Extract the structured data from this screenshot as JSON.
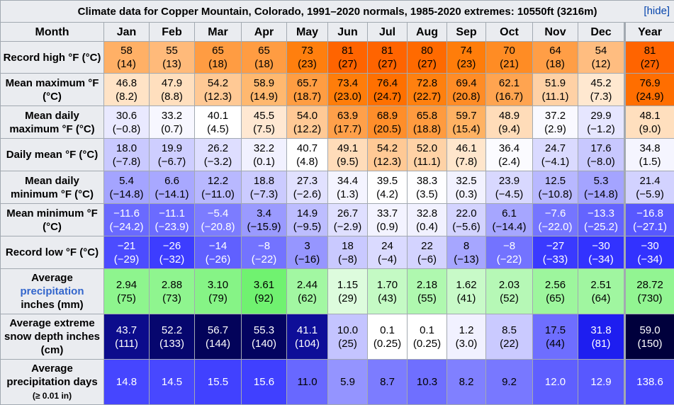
{
  "title": "Climate data for Copper Mountain, Colorado, 1991–2020 normals, 1985-2020 extremes: 10550ft (3216m)",
  "hide_label": "[hide]",
  "header": {
    "month": "Month",
    "months": [
      "Jan",
      "Feb",
      "Mar",
      "Apr",
      "May",
      "Jun",
      "Jul",
      "Aug",
      "Sep",
      "Oct",
      "Nov",
      "Dec"
    ],
    "year": "Year"
  },
  "rows": [
    {
      "label": "Record high °F (°C)",
      "cells": [
        [
          "58",
          "(14)"
        ],
        [
          "55",
          "(13)"
        ],
        [
          "65",
          "(18)"
        ],
        [
          "65",
          "(18)"
        ],
        [
          "73",
          "(23)"
        ],
        [
          "81",
          "(27)"
        ],
        [
          "81",
          "(27)"
        ],
        [
          "80",
          "(27)"
        ],
        [
          "74",
          "(23)"
        ],
        [
          "70",
          "(21)"
        ],
        [
          "64",
          "(18)"
        ],
        [
          "54",
          "(12)"
        ],
        [
          "81",
          "(27)"
        ]
      ],
      "colors": [
        "#ffb066",
        "#ffba7a",
        "#ff9c42",
        "#ff9c42",
        "#ff7f0e",
        "#ff6400",
        "#ff6400",
        "#ff6a00",
        "#ff7d0a",
        "#ff8c24",
        "#ff9e46",
        "#ffbd80",
        "#ff6400"
      ],
      "text": [
        "#000",
        "#000",
        "#000",
        "#000",
        "#000",
        "#000",
        "#000",
        "#000",
        "#000",
        "#000",
        "#000",
        "#000",
        "#000"
      ]
    },
    {
      "label": "Mean maximum °F (°C)",
      "cells": [
        [
          "46.8",
          "(8.2)"
        ],
        [
          "47.9",
          "(8.8)"
        ],
        [
          "54.2",
          "(12.3)"
        ],
        [
          "58.9",
          "(14.9)"
        ],
        [
          "65.7",
          "(18.7)"
        ],
        [
          "73.4",
          "(23.0)"
        ],
        [
          "76.4",
          "(24.7)"
        ],
        [
          "72.8",
          "(22.7)"
        ],
        [
          "69.4",
          "(20.8)"
        ],
        [
          "62.1",
          "(16.7)"
        ],
        [
          "51.9",
          "(11.1)"
        ],
        [
          "45.2",
          "(7.3)"
        ],
        [
          "76.9",
          "(24.9)"
        ]
      ],
      "colors": [
        "#ffe3c6",
        "#ffdfbe",
        "#ffc995",
        "#ffb86f",
        "#ff9d42",
        "#ff7d0a",
        "#ff7000",
        "#ff800f",
        "#ff8c26",
        "#ffa450",
        "#ffd1a5",
        "#ffe8d0",
        "#ff6e00"
      ],
      "text": [
        "#000",
        "#000",
        "#000",
        "#000",
        "#000",
        "#000",
        "#000",
        "#000",
        "#000",
        "#000",
        "#000",
        "#000",
        "#000"
      ]
    },
    {
      "label": "Mean daily maximum °F (°C)",
      "cells": [
        [
          "30.6",
          "(−0.8)"
        ],
        [
          "33.2",
          "(0.7)"
        ],
        [
          "40.1",
          "(4.5)"
        ],
        [
          "45.5",
          "(7.5)"
        ],
        [
          "54.0",
          "(12.2)"
        ],
        [
          "63.9",
          "(17.7)"
        ],
        [
          "68.9",
          "(20.5)"
        ],
        [
          "65.8",
          "(18.8)"
        ],
        [
          "59.7",
          "(15.4)"
        ],
        [
          "48.9",
          "(9.4)"
        ],
        [
          "37.2",
          "(2.9)"
        ],
        [
          "29.9",
          "(−1.2)"
        ],
        [
          "48.1",
          "(9.0)"
        ]
      ],
      "colors": [
        "#e9e9ff",
        "#f7f7ff",
        "#ffffff",
        "#ffe8d2",
        "#ffc995",
        "#ffa04a",
        "#ff8e2a",
        "#ff9b3f",
        "#ffb263",
        "#ffdcb9",
        "#f9f9ff",
        "#e6e6ff",
        "#ffdfbe"
      ],
      "text": [
        "#000",
        "#000",
        "#000",
        "#000",
        "#000",
        "#000",
        "#000",
        "#000",
        "#000",
        "#000",
        "#000",
        "#000",
        "#000"
      ]
    },
    {
      "label": "Daily mean °F (°C)",
      "cells": [
        [
          "18.0",
          "(−7.8)"
        ],
        [
          "19.9",
          "(−6.7)"
        ],
        [
          "26.2",
          "(−3.2)"
        ],
        [
          "32.2",
          "(0.1)"
        ],
        [
          "40.7",
          "(4.8)"
        ],
        [
          "49.1",
          "(9.5)"
        ],
        [
          "54.2",
          "(12.3)"
        ],
        [
          "52.0",
          "(11.1)"
        ],
        [
          "46.1",
          "(7.8)"
        ],
        [
          "36.4",
          "(2.4)"
        ],
        [
          "24.7",
          "(−4.1)"
        ],
        [
          "17.6",
          "(−8.0)"
        ],
        [
          "34.8",
          "(1.5)"
        ]
      ],
      "colors": [
        "#c9c9ff",
        "#ceceff",
        "#dedeff",
        "#f1f1ff",
        "#ffffff",
        "#ffdcb9",
        "#ffc995",
        "#ffd2a6",
        "#ffe6cc",
        "#fbfbff",
        "#dadaff",
        "#c8c8ff",
        "#f5f5ff"
      ],
      "text": [
        "#000",
        "#000",
        "#000",
        "#000",
        "#000",
        "#000",
        "#000",
        "#000",
        "#000",
        "#000",
        "#000",
        "#000",
        "#000"
      ]
    },
    {
      "label": "Mean daily minimum °F (°C)",
      "cells": [
        [
          "5.4",
          "(−14.8)"
        ],
        [
          "6.6",
          "(−14.1)"
        ],
        [
          "12.2",
          "(−11.0)"
        ],
        [
          "18.8",
          "(−7.3)"
        ],
        [
          "27.3",
          "(−2.6)"
        ],
        [
          "34.4",
          "(1.3)"
        ],
        [
          "39.5",
          "(4.2)"
        ],
        [
          "38.3",
          "(3.5)"
        ],
        [
          "32.5",
          "(0.3)"
        ],
        [
          "23.9",
          "(−4.5)"
        ],
        [
          "12.5",
          "(−10.8)"
        ],
        [
          "5.3",
          "(−14.8)"
        ],
        [
          "21.4",
          "(−5.9)"
        ]
      ],
      "colors": [
        "#a4a4ff",
        "#a8a8ff",
        "#b8b8ff",
        "#cbcbff",
        "#e1e1ff",
        "#f4f4ff",
        "#ffffff",
        "#fefeff",
        "#f2f2ff",
        "#d8d8ff",
        "#b8b8ff",
        "#a4a4ff",
        "#d2d2ff"
      ],
      "text": [
        "#000",
        "#000",
        "#000",
        "#000",
        "#000",
        "#000",
        "#000",
        "#000",
        "#000",
        "#000",
        "#000",
        "#000",
        "#000"
      ]
    },
    {
      "label": "Mean minimum °F (°C)",
      "cells": [
        [
          "−11.6",
          "(−24.2)"
        ],
        [
          "−11.1",
          "(−23.9)"
        ],
        [
          "−5.4",
          "(−20.8)"
        ],
        [
          "3.4",
          "(−15.9)"
        ],
        [
          "14.9",
          "(−9.5)"
        ],
        [
          "26.7",
          "(−2.9)"
        ],
        [
          "33.7",
          "(0.9)"
        ],
        [
          "32.8",
          "(0.4)"
        ],
        [
          "22.0",
          "(−5.6)"
        ],
        [
          "6.1",
          "(−14.4)"
        ],
        [
          "−7.6",
          "(−22.0)"
        ],
        [
          "−13.3",
          "(−25.2)"
        ],
        [
          "−16.8",
          "(−27.1)"
        ]
      ],
      "colors": [
        "#6a6aff",
        "#6b6bff",
        "#7c7cff",
        "#9a9aff",
        "#bdbdff",
        "#dfdfff",
        "#f3f3ff",
        "#f1f1ff",
        "#d3d3ff",
        "#a6a6ff",
        "#7575ff",
        "#6464ff",
        "#5858ff"
      ],
      "text": [
        "#fff",
        "#fff",
        "#fff",
        "#000",
        "#000",
        "#000",
        "#000",
        "#000",
        "#000",
        "#000",
        "#fff",
        "#fff",
        "#fff"
      ]
    },
    {
      "label": "Record low °F (°C)",
      "cells": [
        [
          "−21",
          "(−29)"
        ],
        [
          "−26",
          "(−32)"
        ],
        [
          "−14",
          "(−26)"
        ],
        [
          "−8",
          "(−22)"
        ],
        [
          "3",
          "(−16)"
        ],
        [
          "18",
          "(−8)"
        ],
        [
          "24",
          "(−4)"
        ],
        [
          "22",
          "(−6)"
        ],
        [
          "8",
          "(−13)"
        ],
        [
          "−8",
          "(−22)"
        ],
        [
          "−27",
          "(−33)"
        ],
        [
          "−30",
          "(−34)"
        ],
        [
          "−30",
          "(−34)"
        ]
      ],
      "colors": [
        "#4c4cff",
        "#3d3dff",
        "#6060ff",
        "#7373ff",
        "#9696ff",
        "#c9c9ff",
        "#dadaff",
        "#d3d3ff",
        "#a6a6ff",
        "#7373ff",
        "#3a3aff",
        "#3232ff",
        "#3232ff"
      ],
      "text": [
        "#fff",
        "#fff",
        "#fff",
        "#fff",
        "#000",
        "#000",
        "#000",
        "#000",
        "#000",
        "#fff",
        "#fff",
        "#fff",
        "#fff"
      ]
    },
    {
      "label": "Average precipitation inches (mm)",
      "link": "precipitation",
      "cells": [
        [
          "2.94",
          "(75)"
        ],
        [
          "2.88",
          "(73)"
        ],
        [
          "3.10",
          "(79)"
        ],
        [
          "3.61",
          "(92)"
        ],
        [
          "2.44",
          "(62)"
        ],
        [
          "1.15",
          "(29)"
        ],
        [
          "1.70",
          "(43)"
        ],
        [
          "2.18",
          "(55)"
        ],
        [
          "1.62",
          "(41)"
        ],
        [
          "2.03",
          "(52)"
        ],
        [
          "2.56",
          "(65)"
        ],
        [
          "2.51",
          "(64)"
        ],
        [
          "28.72",
          "(730)"
        ]
      ],
      "colors": [
        "#8ef58e",
        "#8ff58f",
        "#86f486",
        "#70f270",
        "#a2f7a2",
        "#ddfcdd",
        "#c4fac4",
        "#aff8af",
        "#c8fac8",
        "#b6f8b6",
        "#9df69d",
        "#a0f6a0",
        "#92f592"
      ],
      "text": [
        "#000",
        "#000",
        "#000",
        "#000",
        "#000",
        "#000",
        "#000",
        "#000",
        "#000",
        "#000",
        "#000",
        "#000",
        "#000"
      ]
    },
    {
      "label": "Average extreme snow depth inches (cm)",
      "cells": [
        [
          "43.7",
          "(111)"
        ],
        [
          "52.2",
          "(133)"
        ],
        [
          "56.7",
          "(144)"
        ],
        [
          "55.3",
          "(140)"
        ],
        [
          "41.1",
          "(104)"
        ],
        [
          "10.0",
          "(25)"
        ],
        [
          "0.1",
          "(0.25)"
        ],
        [
          "0.1",
          "(0.25)"
        ],
        [
          "1.2",
          "(3.0)"
        ],
        [
          "8.5",
          "(22)"
        ],
        [
          "17.5",
          "(44)"
        ],
        [
          "31.8",
          "(81)"
        ],
        [
          "59.0",
          "(150)"
        ]
      ],
      "colors": [
        "#0c0c8c",
        "#06066e",
        "#03035a",
        "#030360",
        "#0e0e98",
        "#c4c4ff",
        "#ffffff",
        "#ffffff",
        "#f1f1ff",
        "#cacaff",
        "#6e6eff",
        "#1e1ef0",
        "#00003c"
      ],
      "text": [
        "#fff",
        "#fff",
        "#fff",
        "#fff",
        "#fff",
        "#000",
        "#000",
        "#000",
        "#000",
        "#000",
        "#000",
        "#fff",
        "#fff"
      ]
    },
    {
      "label": "Average precipitation days",
      "label_small": "(≥ 0.01 in)",
      "cells": [
        [
          "14.8",
          ""
        ],
        [
          "14.5",
          ""
        ],
        [
          "15.5",
          ""
        ],
        [
          "15.6",
          ""
        ],
        [
          "11.0",
          ""
        ],
        [
          "5.9",
          ""
        ],
        [
          "8.7",
          ""
        ],
        [
          "10.3",
          ""
        ],
        [
          "8.2",
          ""
        ],
        [
          "9.2",
          ""
        ],
        [
          "12.0",
          ""
        ],
        [
          "12.9",
          ""
        ],
        [
          "138.6",
          ""
        ]
      ],
      "colors": [
        "#4646ff",
        "#4848ff",
        "#4141ff",
        "#4040ff",
        "#6868ff",
        "#9494ff",
        "#7c7cff",
        "#6f6fff",
        "#8080ff",
        "#7878ff",
        "#5f5fff",
        "#5858ff",
        "#4a4aff"
      ],
      "text": [
        "#fff",
        "#fff",
        "#fff",
        "#fff",
        "#000",
        "#000",
        "#000",
        "#000",
        "#000",
        "#000",
        "#fff",
        "#fff",
        "#fff"
      ]
    }
  ]
}
